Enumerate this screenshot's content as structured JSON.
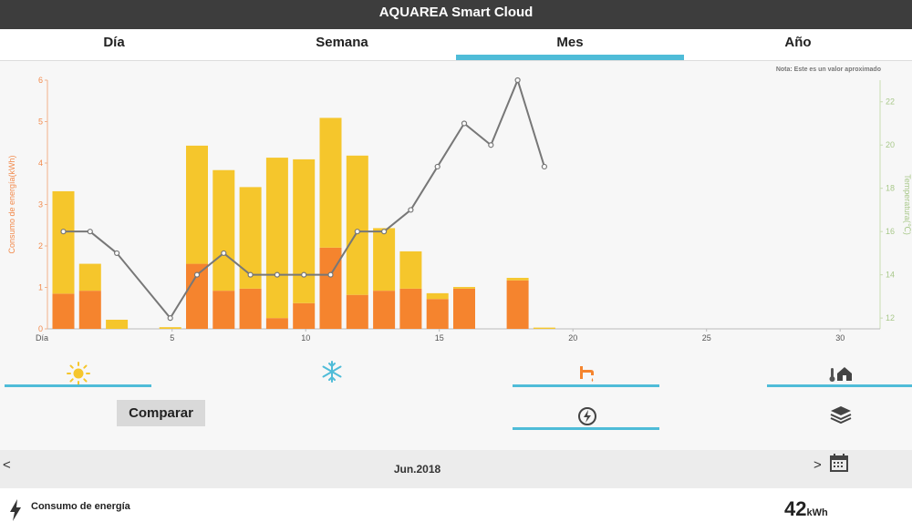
{
  "app": {
    "title": "AQUAREA Smart Cloud"
  },
  "tabs": [
    {
      "label": "Día",
      "active": false
    },
    {
      "label": "Semana",
      "active": false
    },
    {
      "label": "Mes",
      "active": true
    },
    {
      "label": "Año",
      "active": false
    }
  ],
  "note": "Nota: Este es un valor aproximado",
  "chart_data": {
    "type": "bar",
    "stacked": true,
    "xlabel": "Día",
    "ylabel": "Consumo de energía(kWh)",
    "y2label": "Temperatura(℃)",
    "ylim": [
      0,
      6
    ],
    "y2lim": [
      11.5,
      23
    ],
    "x_ticks": [
      5,
      10,
      15,
      20,
      25,
      30
    ],
    "y_ticks": [
      0,
      1,
      2,
      3,
      4,
      5,
      6
    ],
    "y2_ticks": [
      12,
      14,
      16,
      18,
      20,
      22
    ],
    "days": [
      1,
      2,
      3,
      4,
      5,
      6,
      7,
      8,
      9,
      10,
      11,
      12,
      13,
      14,
      15,
      16,
      17,
      18,
      19,
      20,
      21,
      22,
      23,
      24,
      25,
      26,
      27,
      28,
      29,
      30
    ],
    "series": [
      {
        "type": "bar",
        "color": "#f5842e",
        "values": [
          0.85,
          0.92,
          0,
          0,
          0,
          1.57,
          0.92,
          0.97,
          0.26,
          0.62,
          1.96,
          0.82,
          0.92,
          0.97,
          0.72,
          0.97,
          0,
          1.17,
          0,
          0,
          0,
          0,
          0,
          0,
          0,
          0,
          0,
          0,
          0,
          0
        ]
      },
      {
        "type": "bar",
        "color": "#f5c62c",
        "values": [
          2.47,
          0.65,
          0.22,
          0,
          0.04,
          2.85,
          2.91,
          2.45,
          3.87,
          3.47,
          3.13,
          3.36,
          1.51,
          0.9,
          0.14,
          0.04,
          0,
          0.06,
          0.03,
          0,
          0,
          0,
          0,
          0,
          0,
          0,
          0,
          0,
          0,
          0
        ]
      },
      {
        "type": "line",
        "color": "#777777",
        "values": [
          16,
          16,
          15,
          null,
          12,
          14,
          15,
          14,
          14,
          14,
          14,
          16,
          16,
          17,
          19,
          21,
          20,
          23,
          19
        ]
      }
    ]
  },
  "modes": {
    "heat_icon": "sun-icon",
    "cool_icon": "snowflake-icon",
    "tank_icon": "faucet-icon",
    "house_icon": "house-thermometer-icon",
    "power_icon": "power-icon",
    "layers_icon": "layers-icon"
  },
  "compare_label": "Comparar",
  "period": {
    "prev": "<",
    "next": ">",
    "label": "Jun.2018"
  },
  "footer": {
    "label": "Consumo de energía",
    "total_value": "42",
    "total_unit": "kWh"
  }
}
